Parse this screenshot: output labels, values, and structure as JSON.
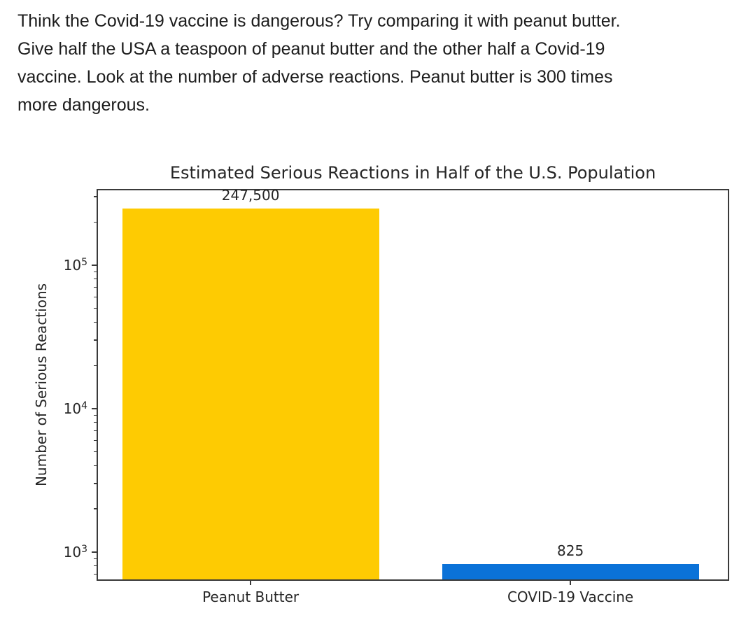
{
  "intro": {
    "text": "Think the Covid-19 vaccine is dangerous? Try comparing it with peanut butter.\nGive half the USA a teaspoon of peanut butter and the other half a Covid-19\nvaccine. Look at the number of adverse reactions. Peanut butter is 300 times\nmore dangerous."
  },
  "chart_data": {
    "type": "bar",
    "title": "Estimated Serious Reactions in Half of the U.S. Population",
    "xlabel": "",
    "ylabel": "Number of Serious Reactions",
    "yscale": "log",
    "ylim": [
      630,
      340000
    ],
    "grid": false,
    "legend": null,
    "categories": [
      "Peanut Butter",
      "COVID-19 Vaccine"
    ],
    "values": [
      247500,
      825
    ],
    "value_labels": [
      "247,500",
      "825"
    ],
    "bar_colors": [
      "#fecb02",
      "#0b72d8"
    ],
    "axis_color": "#3a3a3a",
    "yticks": [
      {
        "value": 1000,
        "label_base": "10",
        "label_exp": "3"
      },
      {
        "value": 10000,
        "label_base": "10",
        "label_exp": "4"
      },
      {
        "value": 100000,
        "label_base": "10",
        "label_exp": "5"
      }
    ]
  }
}
